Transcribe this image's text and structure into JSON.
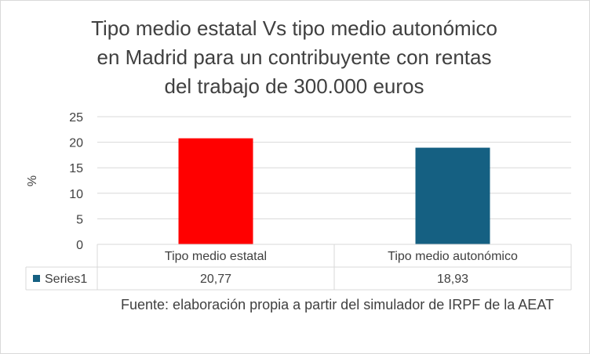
{
  "chart_data": {
    "type": "bar",
    "title": "Tipo medio estatal Vs tipo medio autonómico\nen Madrid para un contribuyente con rentas\ndel trabajo de 300.000 euros",
    "ylabel": "%",
    "xlabel": "",
    "ylim": [
      0,
      25
    ],
    "yticks": [
      "0",
      "5",
      "10",
      "15",
      "20",
      "25"
    ],
    "grid": true,
    "categories": [
      "Tipo medio estatal",
      "Tipo medio autonómico"
    ],
    "series": [
      {
        "name": "Series1",
        "values": [
          20.77,
          18.93
        ],
        "value_labels": [
          "20,77",
          "18,93"
        ]
      }
    ],
    "bar_colors": [
      "#ff0000",
      "#156082"
    ],
    "legend_color": "#156082",
    "data_table": true
  },
  "source_note": "Fuente: elaboración propia a partir del simulador de IRPF de la AEAT"
}
